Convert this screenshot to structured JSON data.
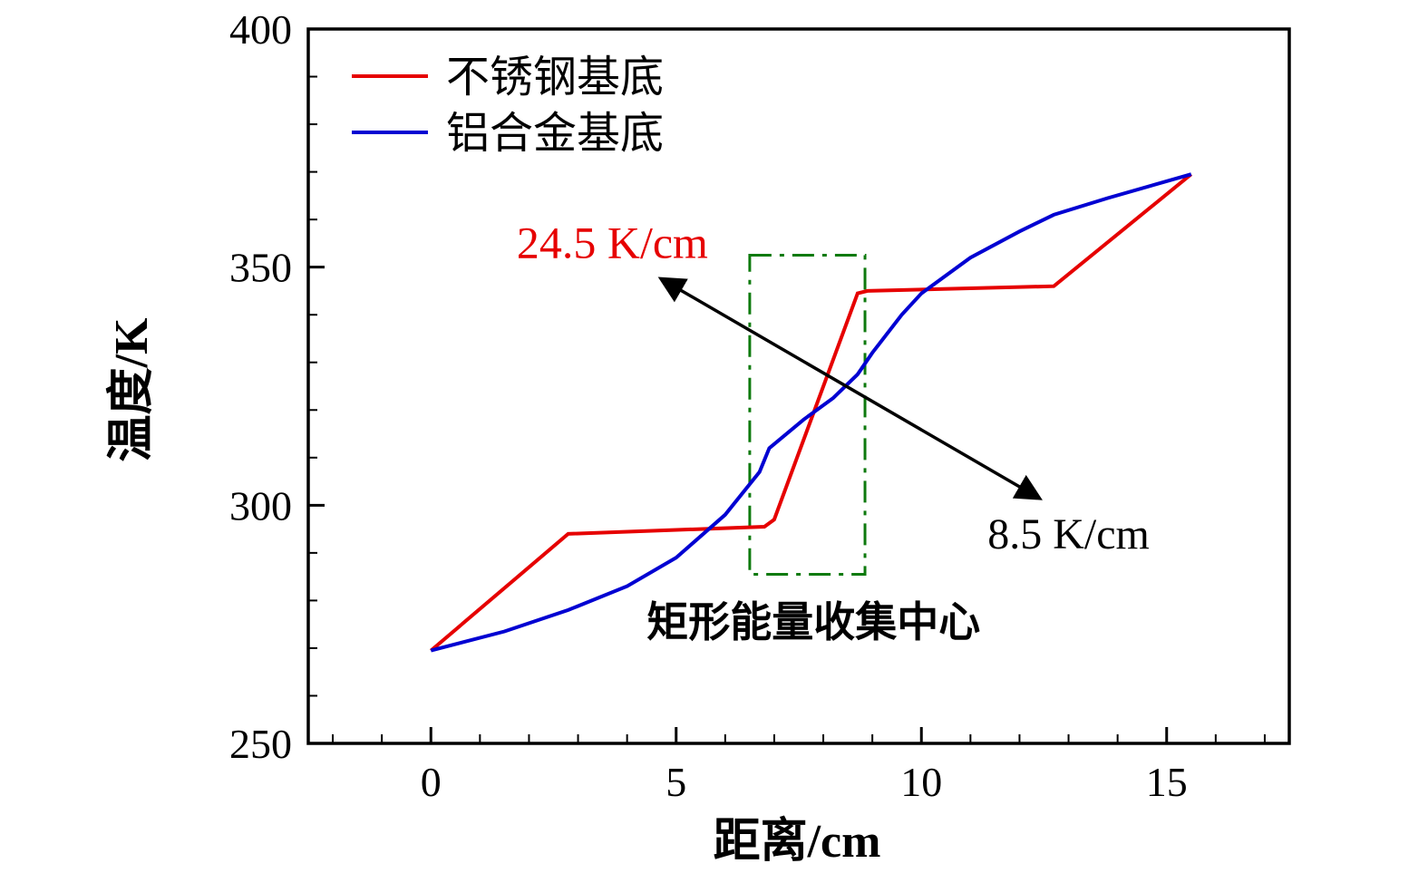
{
  "chart_data": {
    "type": "line",
    "title": "",
    "xlabel": "距离/cm",
    "ylabel": "温度/K",
    "xlim": [
      -2.5,
      17.5
    ],
    "ylim": [
      250,
      400
    ],
    "x_major_ticks": [
      0,
      5,
      10,
      15
    ],
    "x_tick_labels": [
      "0",
      "5",
      "10",
      "15"
    ],
    "x_minor_step": 1,
    "y_major_ticks": [
      250,
      300,
      350,
      400
    ],
    "y_tick_labels": [
      "250",
      "300",
      "350",
      "400"
    ],
    "y_minor_step": 10,
    "grid": false,
    "legend_position": "upper-left-inside",
    "series": [
      {
        "name": "不锈钢基底",
        "color": "#e60000",
        "points": [
          [
            0,
            269.5
          ],
          [
            2.8,
            294
          ],
          [
            6.8,
            295.5
          ],
          [
            7.0,
            297
          ],
          [
            8.7,
            344.5
          ],
          [
            8.9,
            345
          ],
          [
            12.7,
            346
          ],
          [
            15.5,
            369.5
          ]
        ]
      },
      {
        "name": "铝合金基底",
        "color": "#0000d2",
        "points": [
          [
            0,
            269.5
          ],
          [
            1.5,
            273.5
          ],
          [
            2.8,
            278
          ],
          [
            4,
            283
          ],
          [
            5,
            289
          ],
          [
            6,
            298
          ],
          [
            6.7,
            307
          ],
          [
            6.9,
            312
          ],
          [
            7.6,
            318
          ],
          [
            8.2,
            322.5
          ],
          [
            8.7,
            327.5
          ],
          [
            9,
            332
          ],
          [
            9.6,
            340
          ],
          [
            10,
            344.5
          ],
          [
            11,
            352
          ],
          [
            12,
            357.5
          ],
          [
            12.7,
            361
          ],
          [
            13.8,
            364.5
          ],
          [
            15.5,
            369.5
          ]
        ]
      }
    ],
    "legend": [
      {
        "label": "不锈钢基底",
        "color": "#e60000"
      },
      {
        "label": "铝合金基底",
        "color": "#0000d2"
      }
    ],
    "annotations": {
      "gradient_red": {
        "text": "24.5 K/cm",
        "color": "#e60000",
        "x": 3.7,
        "y": 355
      },
      "gradient_black": {
        "text": "8.5 K/cm",
        "color": "#000000",
        "x": 13.0,
        "y": 294
      },
      "center_label": {
        "text": "矩形能量收集中心",
        "color": "#000000",
        "x": 7.8,
        "y": 275.5
      }
    },
    "arrow": {
      "x1": 4.7,
      "y1": 347.5,
      "x2": 12.4,
      "y2": 301.5,
      "color": "#000000"
    },
    "highlight_rect": {
      "x1": 6.5,
      "x2": 8.85,
      "y1": 285.5,
      "y2": 352.5,
      "color": "#0e7a0e"
    }
  }
}
